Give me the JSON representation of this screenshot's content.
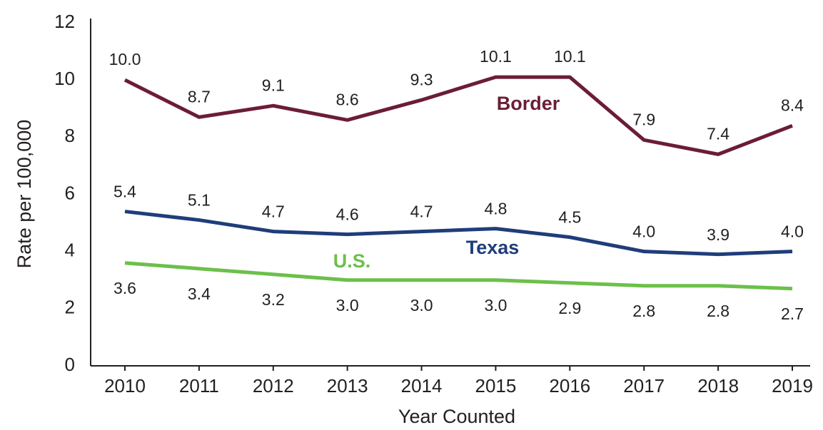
{
  "chart_data": {
    "type": "line",
    "categories": [
      "2010",
      "2011",
      "2012",
      "2013",
      "2014",
      "2015",
      "2016",
      "2017",
      "2018",
      "2019"
    ],
    "series": [
      {
        "name": "Border",
        "color": "#6b1d35",
        "values": [
          10.0,
          8.7,
          9.1,
          8.6,
          9.3,
          10.1,
          10.1,
          7.9,
          7.4,
          8.4
        ],
        "value_labels": [
          "10.0",
          "8.7",
          "9.1",
          "8.6",
          "9.3",
          "10.1",
          "10.1",
          "7.9",
          "7.4",
          "8.4"
        ]
      },
      {
        "name": "Texas",
        "color": "#1f3d7a",
        "values": [
          5.4,
          5.1,
          4.7,
          4.6,
          4.7,
          4.8,
          4.5,
          4.0,
          3.9,
          4.0
        ],
        "value_labels": [
          "5.4",
          "5.1",
          "4.7",
          "4.6",
          "4.7",
          "4.8",
          "4.5",
          "4.0",
          "3.9",
          "4.0"
        ]
      },
      {
        "name": "U.S.",
        "color": "#6cc04a",
        "values": [
          3.6,
          3.4,
          3.2,
          3.0,
          3.0,
          3.0,
          2.9,
          2.8,
          2.8,
          2.7
        ],
        "value_labels": [
          "3.6",
          "3.4",
          "3.2",
          "3.0",
          "3.0",
          "3.0",
          "2.9",
          "2.8",
          "2.8",
          "2.7"
        ]
      }
    ],
    "y_label": "Rate per 100,000",
    "x_label": "Year Counted",
    "ylim": [
      0,
      12
    ],
    "yticks": [
      0,
      2,
      4,
      6,
      8,
      10,
      12
    ],
    "grid": false
  }
}
